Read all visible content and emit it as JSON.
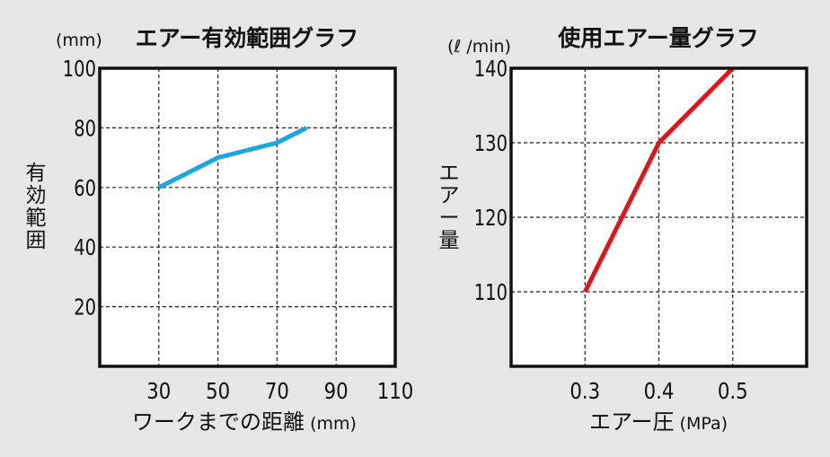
{
  "chart_data": [
    {
      "type": "line",
      "title": "エアー有効範囲グラフ",
      "unit_label": "(mm)",
      "xlabel": "ワークまでの距離",
      "xlabel_unit": " (mm)",
      "ylabel": "有効範囲",
      "x_ticks": [
        30,
        50,
        70,
        90,
        110
      ],
      "y_ticks": [
        20,
        40,
        60,
        80,
        100
      ],
      "xlim": [
        10,
        110
      ],
      "ylim": [
        0,
        100
      ],
      "grid": true,
      "line_color": "#1aa7e0",
      "series": [
        {
          "x": [
            30,
            50,
            70,
            80
          ],
          "y": [
            60,
            70,
            75,
            80
          ]
        }
      ]
    },
    {
      "type": "line",
      "title": "使用エアー量グラフ",
      "unit_label": "(ℓ /min)",
      "xlabel": "エアー圧",
      "xlabel_unit": " (MPa)",
      "ylabel": "エアー量",
      "x_ticks": [
        "0.3",
        "0.4",
        "0.5"
      ],
      "y_ticks": [
        110,
        120,
        130,
        140
      ],
      "xlim": [
        0.2,
        0.6
      ],
      "ylim": [
        100,
        140
      ],
      "grid": true,
      "line_color": "#e0141c",
      "series": [
        {
          "x": [
            0.3,
            0.4,
            0.5
          ],
          "y": [
            110,
            130,
            140
          ]
        }
      ]
    }
  ]
}
